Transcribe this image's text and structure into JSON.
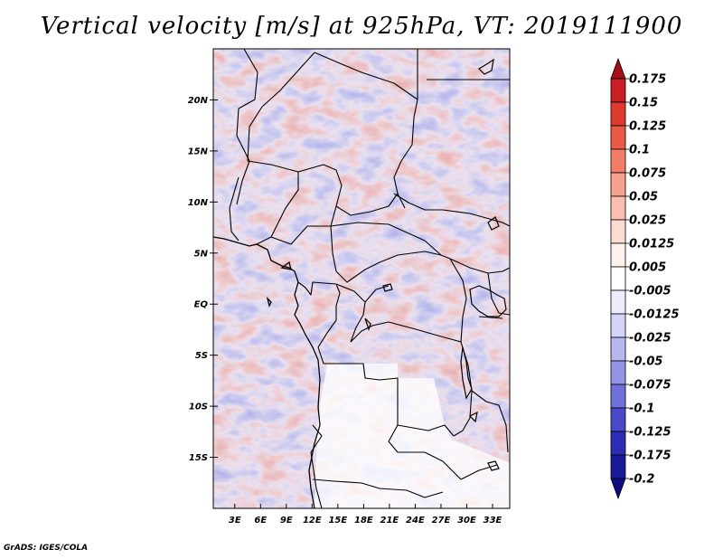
{
  "title": "Vertical velocity [m/s] at 925hPa, VT: 2019111900",
  "credit": "GrADS: IGES/COLA",
  "chart_data": {
    "type": "heatmap",
    "variable": "Vertical velocity",
    "units": "m/s",
    "level": "925hPa",
    "valid_time": "2019111900",
    "lon_ticks": [
      "3E",
      "6E",
      "9E",
      "12E",
      "15E",
      "18E",
      "21E",
      "24E",
      "27E",
      "30E",
      "33E"
    ],
    "lon_values": [
      3,
      6,
      9,
      12,
      15,
      18,
      21,
      24,
      27,
      30,
      33
    ],
    "lat_ticks": [
      "20N",
      "15N",
      "10N",
      "5N",
      "EQ",
      "5S",
      "10S",
      "15S"
    ],
    "lat_values": [
      20,
      15,
      10,
      5,
      0,
      -5,
      -10,
      -15
    ],
    "xlim": [
      0.5,
      35
    ],
    "ylim": [
      -20,
      25
    ],
    "colorbar": {
      "levels": [
        "0.175",
        "0.15",
        "0.125",
        "0.1",
        "0.075",
        "0.05",
        "0.025",
        "0.0125",
        "0.005",
        "-0.005",
        "-0.0125",
        "-0.025",
        "-0.05",
        "-0.075",
        "-0.1",
        "-0.125",
        "-0.175",
        "-0.2"
      ],
      "colors": [
        "#a50f15",
        "#c81e24",
        "#dd3a30",
        "#ea5a48",
        "#f27e6a",
        "#f6a08e",
        "#f9c0b2",
        "#fbdcd3",
        "#fdf1ec",
        "#ffffff",
        "#ececfb",
        "#d4d4f6",
        "#b7b7ef",
        "#9494e6",
        "#6f6fd9",
        "#4a4ac8",
        "#2d2db3",
        "#1a1a99",
        "#0d0d80"
      ]
    }
  }
}
